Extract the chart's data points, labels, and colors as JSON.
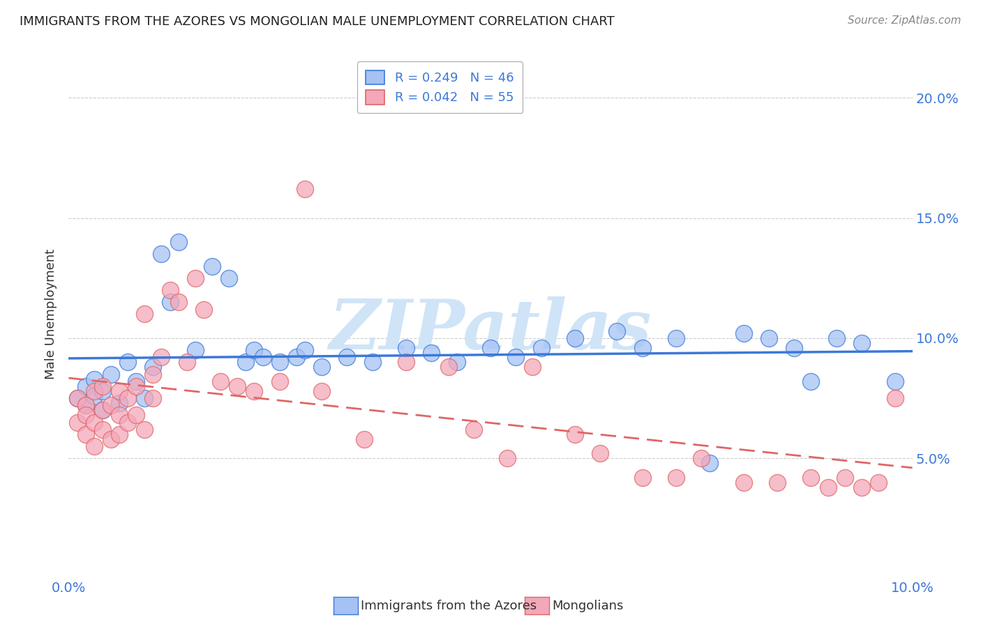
{
  "title": "IMMIGRANTS FROM THE AZORES VS MONGOLIAN MALE UNEMPLOYMENT CORRELATION CHART",
  "source": "Source: ZipAtlas.com",
  "ylabel": "Male Unemployment",
  "legend_label1": "Immigrants from the Azores",
  "legend_label2": "Mongolians",
  "r1": 0.249,
  "n1": 46,
  "r2": 0.042,
  "n2": 55,
  "color_blue": "#a4c2f4",
  "color_pink": "#f4a7b9",
  "color_blue_line": "#3c78d8",
  "color_pink_line": "#e06666",
  "color_text_blue": "#3c78d8",
  "xlim": [
    0.0,
    0.1
  ],
  "ylim": [
    0.0,
    0.22
  ],
  "x_ticks": [
    0.0,
    0.025,
    0.05,
    0.075,
    0.1
  ],
  "x_tick_labels": [
    "0.0%",
    "",
    "",
    "",
    "10.0%"
  ],
  "y_ticks": [
    0.05,
    0.1,
    0.15,
    0.2
  ],
  "y_tick_labels": [
    "5.0%",
    "10.0%",
    "15.0%",
    "20.0%"
  ],
  "blue_scatter_x": [
    0.001,
    0.002,
    0.002,
    0.003,
    0.003,
    0.004,
    0.004,
    0.005,
    0.006,
    0.007,
    0.008,
    0.009,
    0.01,
    0.011,
    0.012,
    0.013,
    0.015,
    0.017,
    0.019,
    0.021,
    0.022,
    0.023,
    0.025,
    0.027,
    0.028,
    0.03,
    0.033,
    0.036,
    0.04,
    0.043,
    0.046,
    0.05,
    0.053,
    0.056,
    0.06,
    0.065,
    0.068,
    0.072,
    0.076,
    0.08,
    0.083,
    0.086,
    0.088,
    0.091,
    0.094,
    0.098
  ],
  "blue_scatter_y": [
    0.075,
    0.072,
    0.08,
    0.076,
    0.083,
    0.07,
    0.078,
    0.085,
    0.073,
    0.09,
    0.082,
    0.075,
    0.088,
    0.135,
    0.115,
    0.14,
    0.095,
    0.13,
    0.125,
    0.09,
    0.095,
    0.092,
    0.09,
    0.092,
    0.095,
    0.088,
    0.092,
    0.09,
    0.096,
    0.094,
    0.09,
    0.096,
    0.092,
    0.096,
    0.1,
    0.103,
    0.096,
    0.1,
    0.048,
    0.102,
    0.1,
    0.096,
    0.082,
    0.1,
    0.098,
    0.082
  ],
  "pink_scatter_x": [
    0.001,
    0.001,
    0.002,
    0.002,
    0.002,
    0.003,
    0.003,
    0.003,
    0.004,
    0.004,
    0.004,
    0.005,
    0.005,
    0.006,
    0.006,
    0.006,
    0.007,
    0.007,
    0.008,
    0.008,
    0.009,
    0.009,
    0.01,
    0.01,
    0.011,
    0.012,
    0.013,
    0.014,
    0.015,
    0.016,
    0.018,
    0.02,
    0.022,
    0.025,
    0.028,
    0.03,
    0.035,
    0.04,
    0.045,
    0.048,
    0.052,
    0.055,
    0.06,
    0.063,
    0.068,
    0.072,
    0.075,
    0.08,
    0.084,
    0.088,
    0.09,
    0.092,
    0.094,
    0.096,
    0.098
  ],
  "pink_scatter_y": [
    0.075,
    0.065,
    0.072,
    0.068,
    0.06,
    0.078,
    0.065,
    0.055,
    0.08,
    0.07,
    0.062,
    0.072,
    0.058,
    0.078,
    0.068,
    0.06,
    0.075,
    0.065,
    0.08,
    0.068,
    0.11,
    0.062,
    0.085,
    0.075,
    0.092,
    0.12,
    0.115,
    0.09,
    0.125,
    0.112,
    0.082,
    0.08,
    0.078,
    0.082,
    0.162,
    0.078,
    0.058,
    0.09,
    0.088,
    0.062,
    0.05,
    0.088,
    0.06,
    0.052,
    0.042,
    0.042,
    0.05,
    0.04,
    0.04,
    0.042,
    0.038,
    0.042,
    0.038,
    0.04,
    0.075
  ],
  "watermark": "ZIPatlas",
  "watermark_color": "#d0e4f7",
  "background_color": "#ffffff",
  "grid_color": "#cccccc"
}
